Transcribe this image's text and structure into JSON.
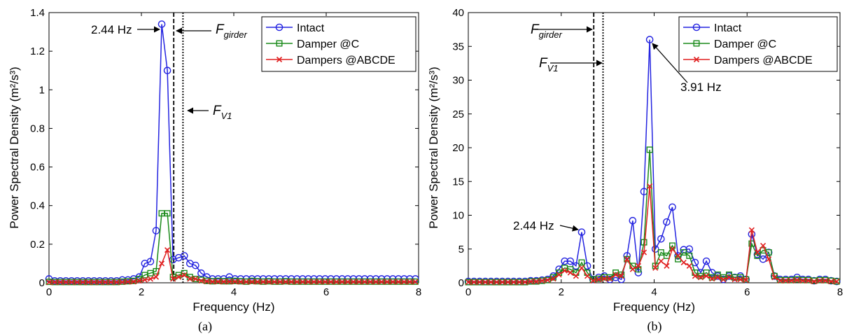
{
  "chart_data": [
    {
      "type": "line",
      "caption": "(a)",
      "xlabel": "Frequency (Hz)",
      "ylabel": "Power Spectral Density (m²/s³)",
      "xlim": [
        0,
        8
      ],
      "ylim": [
        0,
        1.4
      ],
      "xticks": [
        0,
        2,
        4,
        6,
        8
      ],
      "yticks": [
        0,
        0.2,
        0.4,
        0.6,
        0.8,
        1,
        1.2,
        1.4
      ],
      "ytick_labels": [
        "0",
        "0.2",
        "0.4",
        "0.6",
        "0.8",
        "1",
        "1.2",
        "1.4"
      ],
      "legend_position": "top-right",
      "vlines": [
        {
          "label": "F_girder",
          "x": 2.7,
          "style": "dashed"
        },
        {
          "label": "F_V1",
          "x": 2.9,
          "style": "dotted"
        }
      ],
      "annotations": [
        {
          "text": "2.44 Hz",
          "x": 2.44,
          "y": 1.34
        },
        {
          "main": "F",
          "sub": "girder",
          "x": 2.7,
          "y": 1.3
        },
        {
          "main": "F",
          "sub": "V1",
          "x": 2.9,
          "y": 0.83
        }
      ],
      "series": [
        {
          "name": "Intact",
          "color": "#2323e0",
          "marker": "circle",
          "x": [
            0,
            0.122,
            0.244,
            0.366,
            0.488,
            0.61,
            0.732,
            0.854,
            0.976,
            1.098,
            1.22,
            1.342,
            1.464,
            1.586,
            1.708,
            1.83,
            1.952,
            2.074,
            2.196,
            2.318,
            2.44,
            2.562,
            2.684,
            2.806,
            2.928,
            3.05,
            3.172,
            3.294,
            3.416,
            3.538,
            3.66,
            3.782,
            3.904,
            4.026,
            4.148,
            4.27,
            4.392,
            4.514,
            4.636,
            4.758,
            4.88,
            5.002,
            5.124,
            5.246,
            5.368,
            5.49,
            5.612,
            5.734,
            5.856,
            5.978,
            6.1,
            6.222,
            6.344,
            6.466,
            6.588,
            6.71,
            6.832,
            6.954,
            7.076,
            7.198,
            7.32,
            7.442,
            7.564,
            7.686,
            7.808,
            7.93
          ],
          "y": [
            0.02,
            0.01,
            0.01,
            0.01,
            0.01,
            0.01,
            0.01,
            0.01,
            0.01,
            0.01,
            0.01,
            0.01,
            0.01,
            0.015,
            0.015,
            0.02,
            0.03,
            0.1,
            0.11,
            0.27,
            1.34,
            1.1,
            0.12,
            0.13,
            0.14,
            0.1,
            0.09,
            0.05,
            0.03,
            0.02,
            0.02,
            0.02,
            0.03,
            0.02,
            0.02,
            0.02,
            0.02,
            0.02,
            0.02,
            0.02,
            0.02,
            0.02,
            0.02,
            0.02,
            0.02,
            0.02,
            0.02,
            0.02,
            0.02,
            0.02,
            0.02,
            0.02,
            0.02,
            0.02,
            0.02,
            0.02,
            0.02,
            0.02,
            0.02,
            0.02,
            0.02,
            0.02,
            0.02,
            0.02,
            0.02,
            0.02
          ]
        },
        {
          "name": "Damper @C",
          "color": "#1a8a1a",
          "marker": "square",
          "x": [
            0,
            0.122,
            0.244,
            0.366,
            0.488,
            0.61,
            0.732,
            0.854,
            0.976,
            1.098,
            1.22,
            1.342,
            1.464,
            1.586,
            1.708,
            1.83,
            1.952,
            2.074,
            2.196,
            2.318,
            2.44,
            2.562,
            2.684,
            2.806,
            2.928,
            3.05,
            3.172,
            3.294,
            3.416,
            3.538,
            3.66,
            3.782,
            3.904,
            4.026,
            4.148,
            4.27,
            4.392,
            4.514,
            4.636,
            4.758,
            4.88,
            5.002,
            5.124,
            5.246,
            5.368,
            5.49,
            5.612,
            5.734,
            5.856,
            5.978,
            6.1,
            6.222,
            6.344,
            6.466,
            6.588,
            6.71,
            6.832,
            6.954,
            7.076,
            7.198,
            7.32,
            7.442,
            7.564,
            7.686,
            7.808,
            7.93
          ],
          "y": [
            0.005,
            0.004,
            0.004,
            0.004,
            0.004,
            0.004,
            0.004,
            0.004,
            0.004,
            0.004,
            0.004,
            0.004,
            0.004,
            0.006,
            0.008,
            0.01,
            0.02,
            0.04,
            0.05,
            0.06,
            0.36,
            0.36,
            0.03,
            0.04,
            0.05,
            0.03,
            0.02,
            0.015,
            0.01,
            0.008,
            0.01,
            0.008,
            0.008,
            0.01,
            0.008,
            0.006,
            0.01,
            0.008,
            0.006,
            0.008,
            0.006,
            0.006,
            0.008,
            0.006,
            0.006,
            0.006,
            0.006,
            0.006,
            0.006,
            0.006,
            0.006,
            0.006,
            0.006,
            0.006,
            0.006,
            0.006,
            0.006,
            0.006,
            0.006,
            0.006,
            0.006,
            0.006,
            0.006,
            0.006,
            0.006,
            0.006
          ]
        },
        {
          "name": "Dampers @ABCDE",
          "color": "#e02020",
          "marker": "x",
          "x": [
            0,
            0.122,
            0.244,
            0.366,
            0.488,
            0.61,
            0.732,
            0.854,
            0.976,
            1.098,
            1.22,
            1.342,
            1.464,
            1.586,
            1.708,
            1.83,
            1.952,
            2.074,
            2.196,
            2.318,
            2.44,
            2.562,
            2.684,
            2.806,
            2.928,
            3.05,
            3.172,
            3.294,
            3.416,
            3.538,
            3.66,
            3.782,
            3.904,
            4.026,
            4.148,
            4.27,
            4.392,
            4.514,
            4.636,
            4.758,
            4.88,
            5.002,
            5.124,
            5.246,
            5.368,
            5.49,
            5.612,
            5.734,
            5.856,
            5.978,
            6.1,
            6.222,
            6.344,
            6.466,
            6.588,
            6.71,
            6.832,
            6.954,
            7.076,
            7.198,
            7.32,
            7.442,
            7.564,
            7.686,
            7.808,
            7.93
          ],
          "y": [
            0.003,
            0.003,
            0.003,
            0.003,
            0.003,
            0.003,
            0.003,
            0.003,
            0.003,
            0.003,
            0.003,
            0.003,
            0.003,
            0.004,
            0.005,
            0.006,
            0.01,
            0.015,
            0.02,
            0.03,
            0.1,
            0.17,
            0.02,
            0.03,
            0.04,
            0.02,
            0.02,
            0.01,
            0.008,
            0.006,
            0.006,
            0.006,
            0.006,
            0.006,
            0.005,
            0.005,
            0.005,
            0.005,
            0.005,
            0.005,
            0.005,
            0.005,
            0.005,
            0.005,
            0.005,
            0.005,
            0.005,
            0.005,
            0.005,
            0.005,
            0.005,
            0.005,
            0.005,
            0.005,
            0.005,
            0.005,
            0.005,
            0.005,
            0.005,
            0.005,
            0.005,
            0.005,
            0.005,
            0.005,
            0.005,
            0.005
          ]
        }
      ]
    },
    {
      "type": "line",
      "caption": "(b)",
      "xlabel": "Frequency (Hz)",
      "ylabel": "Power Spectral Density (m²/s³)",
      "xlim": [
        0,
        8
      ],
      "ylim": [
        0,
        40
      ],
      "xticks": [
        0,
        2,
        4,
        6,
        8
      ],
      "yticks": [
        0,
        5,
        10,
        15,
        20,
        25,
        30,
        35,
        40
      ],
      "ytick_labels": [
        "0",
        "5",
        "10",
        "15",
        "20",
        "25",
        "30",
        "35",
        "40"
      ],
      "legend_position": "top-right",
      "vlines": [
        {
          "label": "F_girder",
          "x": 2.7,
          "style": "dashed"
        },
        {
          "label": "F_V1",
          "x": 2.9,
          "style": "dotted"
        }
      ],
      "annotations": [
        {
          "main": "F",
          "sub": "girder",
          "x": 2.7,
          "y": 35
        },
        {
          "main": "F",
          "sub": "V1",
          "x": 2.7,
          "y": 29
        },
        {
          "text": "3.91 Hz",
          "x": 3.91,
          "y": 36
        },
        {
          "text": "2.44 Hz",
          "x": 2.44,
          "y": 7.5
        }
      ],
      "series": [
        {
          "name": "Intact",
          "color": "#2323e0",
          "marker": "circle",
          "x": [
            0,
            0.122,
            0.244,
            0.366,
            0.488,
            0.61,
            0.732,
            0.854,
            0.976,
            1.098,
            1.22,
            1.342,
            1.464,
            1.586,
            1.708,
            1.83,
            1.952,
            2.074,
            2.196,
            2.318,
            2.44,
            2.562,
            2.684,
            2.806,
            2.928,
            3.05,
            3.172,
            3.294,
            3.416,
            3.538,
            3.66,
            3.782,
            3.904,
            4.026,
            4.148,
            4.27,
            4.392,
            4.514,
            4.636,
            4.758,
            4.88,
            5.002,
            5.124,
            5.246,
            5.368,
            5.49,
            5.612,
            5.734,
            5.856,
            5.978,
            6.1,
            6.222,
            6.344,
            6.466,
            6.588,
            6.71,
            6.832,
            6.954,
            7.076,
            7.198,
            7.32,
            7.442,
            7.564,
            7.686,
            7.808,
            7.93
          ],
          "y": [
            0.2,
            0.2,
            0.2,
            0.2,
            0.2,
            0.2,
            0.2,
            0.2,
            0.2,
            0.2,
            0.2,
            0.3,
            0.3,
            0.4,
            0.5,
            1,
            2,
            3.2,
            3.2,
            2.5,
            7.5,
            2.5,
            0.5,
            0.8,
            1,
            0.5,
            0.8,
            0.5,
            4,
            9.2,
            1.5,
            13.5,
            36,
            5,
            6.5,
            9,
            11.2,
            4,
            4.9,
            5,
            3,
            1.5,
            3.2,
            1.5,
            1,
            0.5,
            1,
            0.8,
            1,
            0.5,
            7.2,
            4.2,
            3.5,
            4.5,
            1,
            0.5,
            0.5,
            0.5,
            0.8,
            0.5,
            0.5,
            0.3,
            0.5,
            0.5,
            0.3,
            0.2
          ]
        },
        {
          "name": "Damper @C",
          "color": "#1a8a1a",
          "marker": "square",
          "x": [
            0,
            0.122,
            0.244,
            0.366,
            0.488,
            0.61,
            0.732,
            0.854,
            0.976,
            1.098,
            1.22,
            1.342,
            1.464,
            1.586,
            1.708,
            1.83,
            1.952,
            2.074,
            2.196,
            2.318,
            2.44,
            2.562,
            2.684,
            2.806,
            2.928,
            3.05,
            3.172,
            3.294,
            3.416,
            3.538,
            3.66,
            3.782,
            3.904,
            4.026,
            4.148,
            4.27,
            4.392,
            4.514,
            4.636,
            4.758,
            4.88,
            5.002,
            5.124,
            5.246,
            5.368,
            5.49,
            5.612,
            5.734,
            5.856,
            5.978,
            6.1,
            6.222,
            6.344,
            6.466,
            6.588,
            6.71,
            6.832,
            6.954,
            7.076,
            7.198,
            7.32,
            7.442,
            7.564,
            7.686,
            7.808,
            7.93
          ],
          "y": [
            0.1,
            0.1,
            0.1,
            0.1,
            0.1,
            0.1,
            0.1,
            0.1,
            0.1,
            0.1,
            0.1,
            0.2,
            0.2,
            0.3,
            0.4,
            0.8,
            1.5,
            2.2,
            2,
            1.5,
            3,
            1.5,
            0.5,
            0.6,
            0.8,
            0.8,
            1.5,
            1.2,
            3.5,
            2.5,
            2,
            6,
            19.7,
            2.5,
            4.5,
            4,
            5.5,
            3.5,
            4.5,
            4,
            1.5,
            1,
            1.5,
            0.8,
            1.2,
            0.8,
            1.2,
            0.8,
            0.8,
            0.5,
            5.8,
            4,
            4.8,
            4.5,
            1,
            0.4,
            0.4,
            0.4,
            0.5,
            0.4,
            0.4,
            0.3,
            0.4,
            0.4,
            0.3,
            0.2
          ]
        },
        {
          "name": "Dampers @ABCDE",
          "color": "#e02020",
          "marker": "x",
          "x": [
            0,
            0.122,
            0.244,
            0.366,
            0.488,
            0.61,
            0.732,
            0.854,
            0.976,
            1.098,
            1.22,
            1.342,
            1.464,
            1.586,
            1.708,
            1.83,
            1.952,
            2.074,
            2.196,
            2.318,
            2.44,
            2.562,
            2.684,
            2.806,
            2.928,
            3.05,
            3.172,
            3.294,
            3.416,
            3.538,
            3.66,
            3.782,
            3.904,
            4.026,
            4.148,
            4.27,
            4.392,
            4.514,
            4.636,
            4.758,
            4.88,
            5.002,
            5.124,
            5.246,
            5.368,
            5.49,
            5.612,
            5.734,
            5.856,
            5.978,
            6.1,
            6.222,
            6.344,
            6.466,
            6.588,
            6.71,
            6.832,
            6.954,
            7.076,
            7.198,
            7.32,
            7.442,
            7.564,
            7.686,
            7.808,
            7.93
          ],
          "y": [
            0.1,
            0.1,
            0.1,
            0.1,
            0.1,
            0.1,
            0.1,
            0.1,
            0.1,
            0.1,
            0.1,
            0.2,
            0.2,
            0.3,
            0.4,
            0.6,
            1.2,
            1.8,
            1.5,
            1,
            2.2,
            1,
            0.3,
            0.5,
            0.6,
            0.6,
            1.2,
            1,
            3.5,
            2,
            2.5,
            4.5,
            14.3,
            2.2,
            3.2,
            2.5,
            5,
            4,
            3,
            2.5,
            1,
            0.8,
            1,
            0.6,
            0.8,
            0.5,
            0.8,
            0.5,
            0.5,
            0.4,
            7.8,
            4.5,
            5.5,
            3.5,
            0.8,
            0.3,
            0.3,
            0.3,
            0.4,
            0.3,
            0.3,
            0.2,
            0.3,
            0.3,
            0.2,
            0.2
          ]
        }
      ]
    }
  ]
}
